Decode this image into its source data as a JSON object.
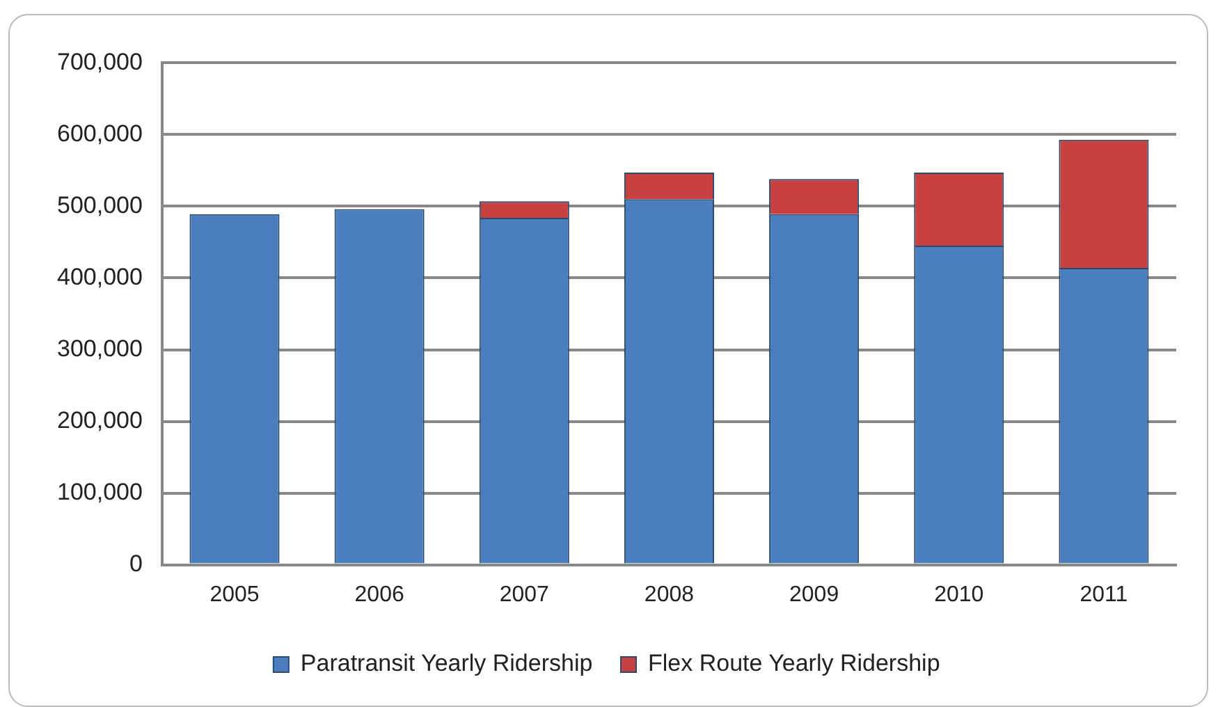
{
  "chart_data": {
    "type": "bar",
    "stacked": true,
    "categories": [
      "2005",
      "2006",
      "2007",
      "2008",
      "2009",
      "2010",
      "2011"
    ],
    "series": [
      {
        "name": "Paratransit Yearly Ridership",
        "color": "#4a7ebf",
        "values": [
          489000,
          496000,
          484000,
          510000,
          489000,
          445000,
          414000
        ]
      },
      {
        "name": "Flex Route Yearly Ridership",
        "color": "#c84040",
        "values": [
          0,
          0,
          23000,
          37000,
          49000,
          102000,
          179000
        ]
      }
    ],
    "ylim": [
      0,
      700000
    ],
    "yticks": [
      {
        "value": 0,
        "label": "0"
      },
      {
        "value": 100000,
        "label": "100,000"
      },
      {
        "value": 200000,
        "label": "200,000"
      },
      {
        "value": 300000,
        "label": "300,000"
      },
      {
        "value": 400000,
        "label": "400,000"
      },
      {
        "value": 500000,
        "label": "500,000"
      },
      {
        "value": 600000,
        "label": "600,000"
      },
      {
        "value": 700000,
        "label": "700,000"
      }
    ],
    "grid": "y",
    "legend": "bottom"
  }
}
